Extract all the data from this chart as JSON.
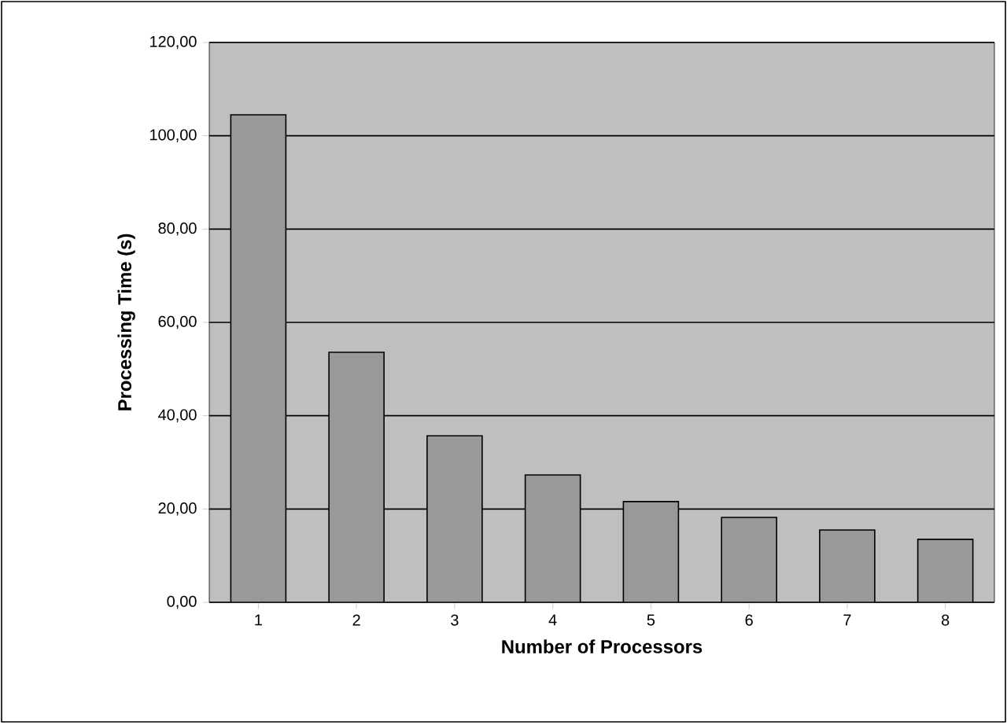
{
  "chart_data": {
    "type": "bar",
    "xlabel": "Number of Processors",
    "ylabel": "Processing Time (s)",
    "categories": [
      "1",
      "2",
      "3",
      "4",
      "5",
      "6",
      "7",
      "8"
    ],
    "values": [
      104.5,
      53.6,
      35.7,
      27.3,
      21.6,
      18.2,
      15.5,
      13.5
    ],
    "color": "#999999",
    "ylim": [
      0,
      120
    ],
    "yticks": [
      {
        "value": 0,
        "label": "0,00"
      },
      {
        "value": 20,
        "label": "20,00"
      },
      {
        "value": 40,
        "label": "40,00"
      },
      {
        "value": 60,
        "label": "60,00"
      },
      {
        "value": 80,
        "label": "80,00"
      },
      {
        "value": 100,
        "label": "100,00"
      },
      {
        "value": 120,
        "label": "120,00"
      }
    ],
    "grid": "y"
  }
}
